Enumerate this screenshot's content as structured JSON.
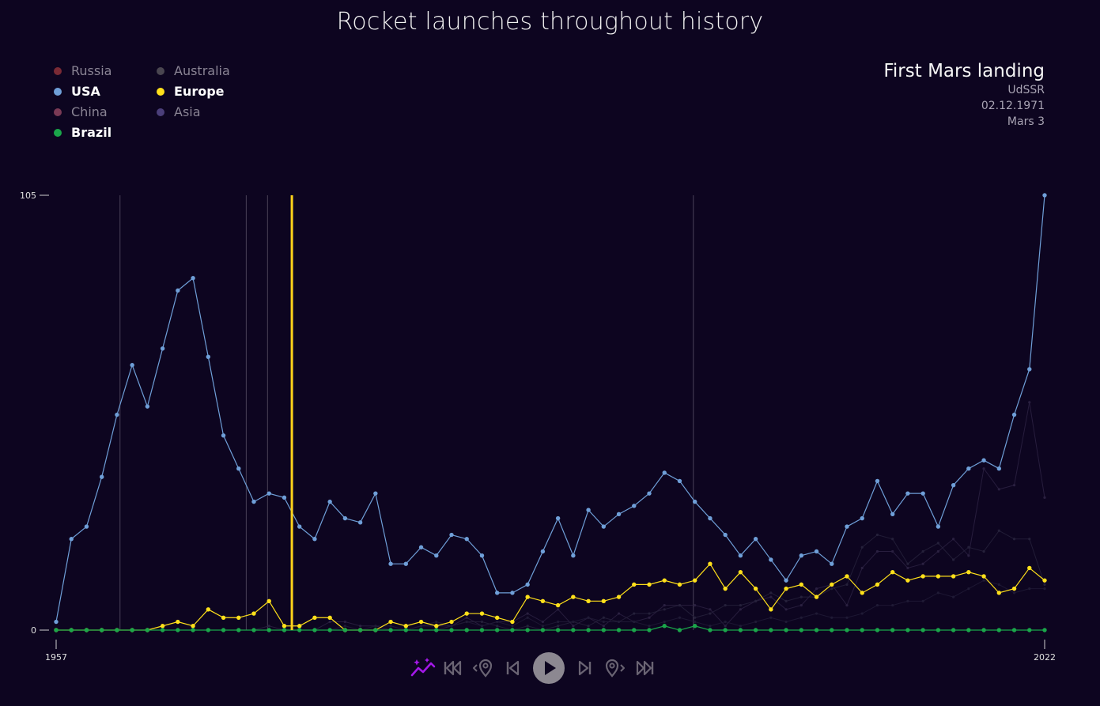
{
  "title": "Rocket launches throughout history",
  "legend": [
    {
      "label": "Russia",
      "color": "#7a2a35",
      "active": false
    },
    {
      "label": "USA",
      "color": "#6f9fd8",
      "active": true
    },
    {
      "label": "China",
      "color": "#7a3a55",
      "active": false
    },
    {
      "label": "Brazil",
      "color": "#1aa64a",
      "active": true
    },
    {
      "label": "Australia",
      "color": "#4a4650",
      "active": false
    },
    {
      "label": "Europe",
      "color": "#ffe01a",
      "active": true
    },
    {
      "label": "Asia",
      "color": "#4b3f7a",
      "active": false
    }
  ],
  "event": {
    "title": "First Mars landing",
    "country": "UdSSR",
    "date": "02.12.1971",
    "mission": "Mars 3"
  },
  "axis": {
    "x_start_label": "1957",
    "x_end_label": "2022",
    "y_labels": [
      "105",
      "0"
    ]
  },
  "controls": [
    {
      "name": "trend-toggle-icon"
    },
    {
      "name": "skip-to-start-icon"
    },
    {
      "name": "previous-event-icon"
    },
    {
      "name": "step-back-icon"
    },
    {
      "name": "play-icon"
    },
    {
      "name": "step-forward-icon"
    },
    {
      "name": "next-event-icon"
    },
    {
      "name": "skip-to-end-icon"
    }
  ],
  "chart_data": {
    "type": "line",
    "title": "Rocket launches throughout history",
    "x": [
      1957,
      1958,
      1959,
      1960,
      1961,
      1962,
      1963,
      1964,
      1965,
      1966,
      1967,
      1968,
      1969,
      1970,
      1971,
      1972,
      1973,
      1974,
      1975,
      1976,
      1977,
      1978,
      1979,
      1980,
      1981,
      1982,
      1983,
      1984,
      1985,
      1986,
      1987,
      1988,
      1989,
      1990,
      1991,
      1992,
      1993,
      1994,
      1995,
      1996,
      1997,
      1998,
      1999,
      2000,
      2001,
      2002,
      2003,
      2004,
      2005,
      2006,
      2007,
      2008,
      2009,
      2010,
      2011,
      2012,
      2013,
      2014,
      2015,
      2016,
      2017,
      2018,
      2019,
      2020,
      2021,
      2022
    ],
    "xlim": [
      1957,
      2022
    ],
    "ylim": [
      0,
      105
    ],
    "y_ticks": [
      0,
      105
    ],
    "current_year": 1972.5,
    "event_years": [
      1961.2,
      1969.5,
      1970.9,
      1998.9
    ],
    "series": [
      {
        "name": "USA",
        "color": "#6f9fd8",
        "highlight": true,
        "values": [
          2,
          22,
          25,
          37,
          52,
          64,
          54,
          68,
          82,
          85,
          66,
          47,
          39,
          31,
          33,
          32,
          25,
          22,
          31,
          27,
          26,
          33,
          16,
          16,
          20,
          18,
          23,
          22,
          18,
          9,
          9,
          11,
          19,
          27,
          18,
          29,
          25,
          28,
          30,
          33,
          38,
          36,
          31,
          27,
          23,
          18,
          22,
          17,
          12,
          18,
          19,
          16,
          25,
          27,
          36,
          28,
          33,
          33,
          25,
          35,
          39,
          41,
          39,
          52,
          63,
          105
        ]
      },
      {
        "name": "Europe",
        "color": "#ffe01a",
        "highlight": true,
        "values": [
          0,
          0,
          0,
          0,
          0,
          0,
          0,
          1,
          2,
          1,
          5,
          3,
          3,
          4,
          7,
          1,
          1,
          3,
          3,
          0,
          0,
          0,
          2,
          1,
          2,
          1,
          2,
          4,
          4,
          3,
          2,
          8,
          7,
          6,
          8,
          7,
          7,
          8,
          11,
          11,
          12,
          11,
          12,
          16,
          10,
          14,
          10,
          5,
          10,
          11,
          8,
          11,
          13,
          9,
          11,
          14,
          12,
          13,
          13,
          13,
          14,
          13,
          9,
          10,
          15,
          12
        ]
      },
      {
        "name": "Brazil",
        "color": "#1aa64a",
        "highlight": true,
        "values": [
          0,
          0,
          0,
          0,
          0,
          0,
          0,
          0,
          0,
          0,
          0,
          0,
          0,
          0,
          0,
          0,
          0,
          0,
          0,
          0,
          0,
          0,
          0,
          0,
          0,
          0,
          0,
          0,
          0,
          0,
          0,
          0,
          0,
          0,
          0,
          0,
          0,
          0,
          0,
          0,
          1,
          0,
          1,
          0,
          0,
          0,
          0,
          0,
          0,
          0,
          0,
          0,
          0,
          0,
          0,
          0,
          0,
          0,
          0,
          0,
          0,
          0,
          0,
          0,
          0,
          0
        ]
      },
      {
        "name": "China",
        "color": "#2a2040",
        "highlight": false,
        "values": [
          0,
          0,
          0,
          0,
          0,
          0,
          0,
          0,
          0,
          0,
          0,
          0,
          0,
          0,
          1,
          0,
          0,
          0,
          2,
          2,
          1,
          1,
          0,
          0,
          1,
          1,
          1,
          3,
          1,
          2,
          2,
          4,
          2,
          5,
          1,
          3,
          1,
          4,
          2,
          3,
          6,
          6,
          6,
          5,
          1,
          5,
          7,
          8,
          5,
          6,
          10,
          11,
          6,
          15,
          19,
          19,
          15,
          16,
          19,
          22,
          18,
          39,
          34,
          35,
          55,
          32
        ]
      },
      {
        "name": "Russia",
        "color": "#25203a",
        "highlight": false,
        "values": [
          0,
          0,
          0,
          0,
          0,
          0,
          0,
          0,
          0,
          0,
          0,
          0,
          0,
          0,
          0,
          0,
          0,
          0,
          0,
          0,
          0,
          0,
          0,
          0,
          0,
          0,
          1,
          2,
          2,
          1,
          0,
          1,
          0,
          1,
          2,
          1,
          3,
          2,
          4,
          4,
          5,
          6,
          3,
          4,
          6,
          6,
          7,
          9,
          7,
          8,
          8,
          10,
          11,
          20,
          23,
          22,
          16,
          19,
          21,
          17,
          20,
          19,
          24,
          22,
          22,
          11
        ]
      },
      {
        "name": "Asia",
        "color": "#1f1a35",
        "highlight": false,
        "values": [
          0,
          0,
          0,
          0,
          0,
          0,
          0,
          0,
          0,
          0,
          0,
          0,
          0,
          0,
          0,
          0,
          0,
          0,
          0,
          1,
          0,
          1,
          1,
          0,
          1,
          2,
          1,
          2,
          1,
          2,
          1,
          3,
          1,
          2,
          2,
          3,
          2,
          2,
          2,
          1,
          2,
          3,
          2,
          1,
          2,
          1,
          2,
          3,
          2,
          3,
          4,
          3,
          3,
          4,
          6,
          6,
          7,
          7,
          9,
          8,
          10,
          12,
          11,
          9,
          10,
          10
        ]
      }
    ]
  }
}
